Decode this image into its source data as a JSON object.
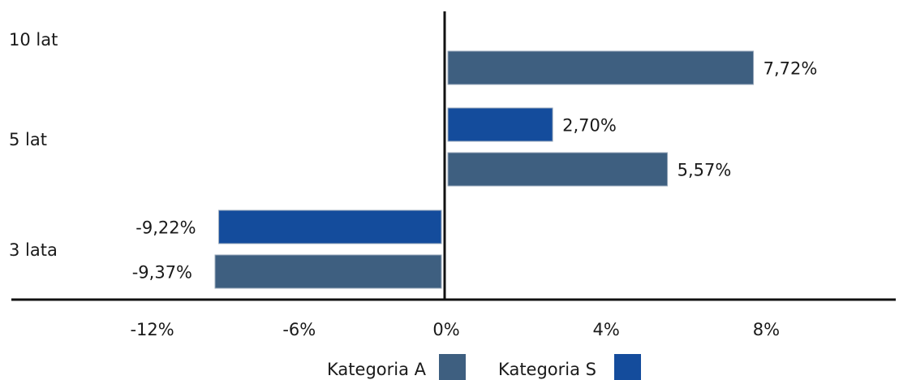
{
  "chart_data": {
    "type": "bar",
    "orientation": "horizontal",
    "title": "",
    "xlabel": "",
    "ylabel": "",
    "categories": [
      "10 lat",
      "5 lat",
      "3 lata"
    ],
    "series": [
      {
        "name": "Kategoria A",
        "color": "#3e5f80",
        "values": [
          7.72,
          5.57,
          -9.37
        ],
        "labels": [
          "7,72%",
          "5,57%",
          "-9,37%"
        ]
      },
      {
        "name": "Kategoria S",
        "color": "#144c9c",
        "values": [
          null,
          2.7,
          -9.22
        ],
        "labels": [
          "",
          "2,70%",
          "-9,22%"
        ]
      }
    ],
    "x_ticks": [
      -12,
      -6,
      0,
      4,
      8
    ],
    "x_tick_labels": [
      "-12%",
      "-6%",
      "0%",
      "4%",
      "8%"
    ],
    "legend_position": "bottom",
    "grid": false
  }
}
